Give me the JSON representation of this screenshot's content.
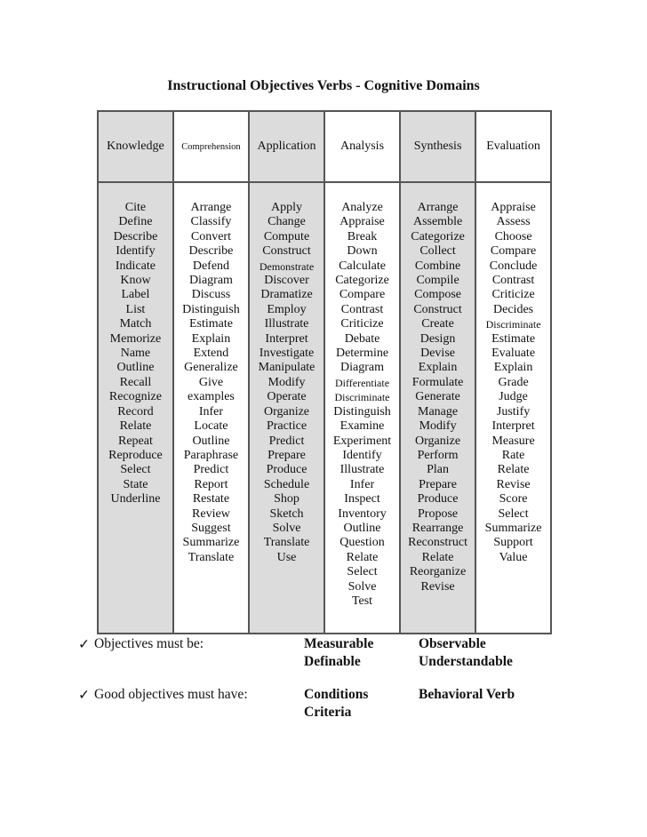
{
  "title": "Instructional Objectives Verbs - Cognitive Domains",
  "columns": [
    {
      "header": "Knowledge",
      "verbs": [
        "Cite",
        "Define",
        "Describe",
        "Identify",
        "Indicate",
        "Know",
        "Label",
        "List",
        "Match",
        "Memorize",
        "Name",
        "Outline",
        "Recall",
        "Recognize",
        "Record",
        "Relate",
        "Repeat",
        "Reproduce",
        "Select",
        "State",
        "Underline"
      ]
    },
    {
      "header": "Comprehension",
      "verbs": [
        "Arrange",
        "Classify",
        "Convert",
        "Describe",
        "Defend",
        "Diagram",
        "Discuss",
        "Distinguish",
        "Estimate",
        "Explain",
        "Extend",
        "Generalize",
        "Give",
        "examples",
        "Infer",
        "Locate",
        "Outline",
        "Paraphrase",
        "Predict",
        "Report",
        "Restate",
        "Review",
        "Suggest",
        "Summarize",
        "Translate"
      ]
    },
    {
      "header": "Application",
      "verbs": [
        "Apply",
        "Change",
        "Compute",
        "Construct",
        "Demonstrate",
        "Discover",
        "Dramatize",
        "Employ",
        "Illustrate",
        "Interpret",
        "Investigate",
        "Manipulate",
        "Modify",
        "Operate",
        "Organize",
        "Practice",
        "Predict",
        "Prepare",
        "Produce",
        "Schedule",
        "Shop",
        "Sketch",
        "Solve",
        "Translate",
        "Use"
      ]
    },
    {
      "header": "Analysis",
      "verbs": [
        "Analyze",
        "Appraise",
        "Break",
        "Down",
        "Calculate",
        "Categorize",
        "Compare",
        "Contrast",
        "Criticize",
        "Debate",
        "Determine",
        "Diagram",
        "Differentiate",
        "Discriminate",
        "Distinguish",
        "Examine",
        "Experiment",
        "Identify",
        "Illustrate",
        "Infer",
        "Inspect",
        "Inventory",
        "Outline",
        "Question",
        "Relate",
        "Select",
        "Solve",
        "Test"
      ]
    },
    {
      "header": "Synthesis",
      "verbs": [
        "Arrange",
        "Assemble",
        "Categorize",
        "Collect",
        "Combine",
        "Compile",
        "Compose",
        "Construct",
        "Create",
        "Design",
        "Devise",
        "Explain",
        "Formulate",
        "Generate",
        "Manage",
        "Modify",
        "Organize",
        "Perform",
        "Plan",
        "Prepare",
        "Produce",
        "Propose",
        "Rearrange",
        "Reconstruct",
        "Relate",
        "Reorganize",
        "Revise"
      ]
    },
    {
      "header": "Evaluation",
      "verbs": [
        "Appraise",
        "Assess",
        "Choose",
        "Compare",
        "Conclude",
        "Contrast",
        "Criticize",
        "Decides",
        "Discriminate",
        "Estimate",
        "Evaluate",
        "Explain",
        "Grade",
        "Judge",
        "Justify",
        "Interpret",
        "Measure",
        "Rate",
        "Relate",
        "Revise",
        "Score",
        "Select",
        "Summarize",
        "Support",
        "Value"
      ]
    }
  ],
  "notes": [
    {
      "check": "✓",
      "label": "Objectives must be:",
      "col1": [
        "Measurable",
        "Definable"
      ],
      "col2": [
        "Observable",
        "Understandable"
      ]
    },
    {
      "check": "✓",
      "label": "Good objectives must have:",
      "col1": [
        "Conditions",
        "Criteria"
      ],
      "col2": [
        "Behavioral Verb"
      ]
    }
  ]
}
